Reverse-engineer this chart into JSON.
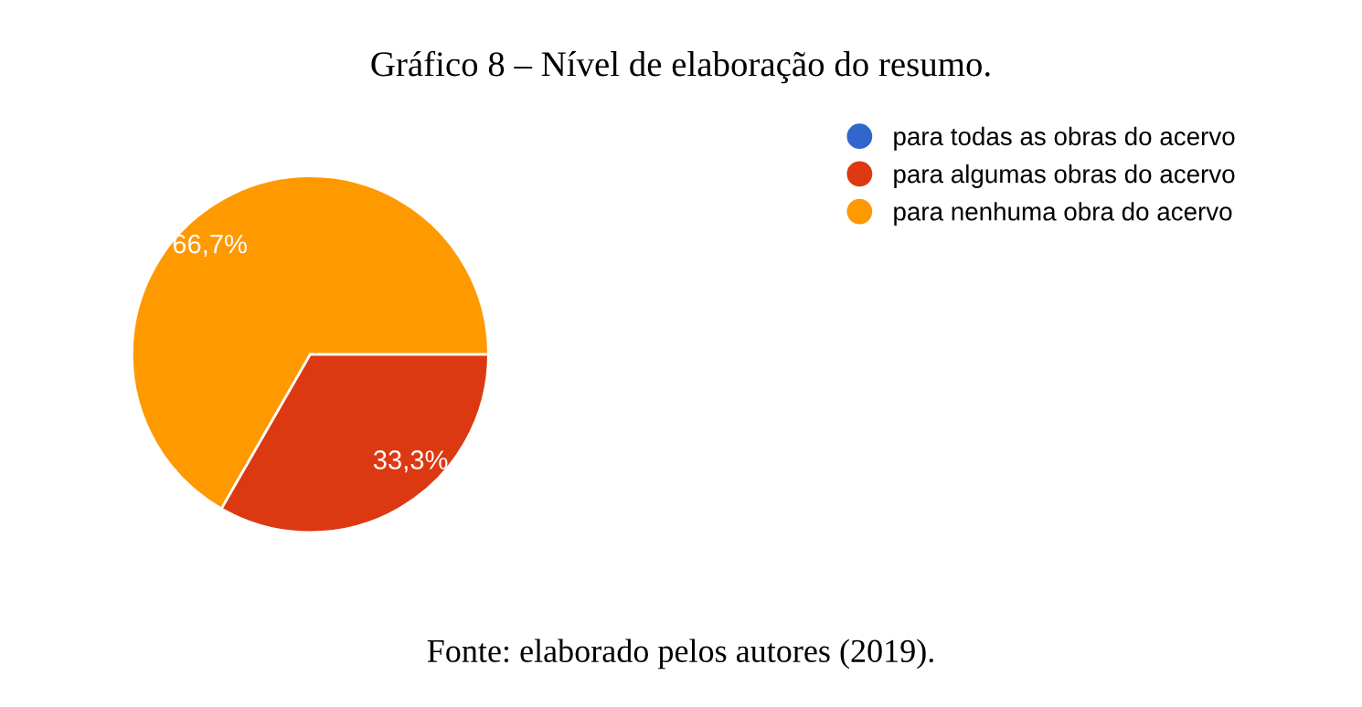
{
  "chart_data": {
    "type": "pie",
    "title": "Gráfico 8 – Nível de elaboração do resumo.",
    "categories": [
      "para todas as obras do acervo",
      "para algumas obras do acervo",
      "para nenhuma obra do acervo"
    ],
    "values": [
      0,
      33.3,
      66.7
    ],
    "colors": [
      "#3366cc",
      "#dc3912",
      "#ff9900"
    ],
    "value_labels": [
      null,
      "33,3%",
      "66,7%"
    ],
    "legend": "right",
    "annotations": [
      "Fonte: elaborado pelos autores (2019)."
    ]
  }
}
